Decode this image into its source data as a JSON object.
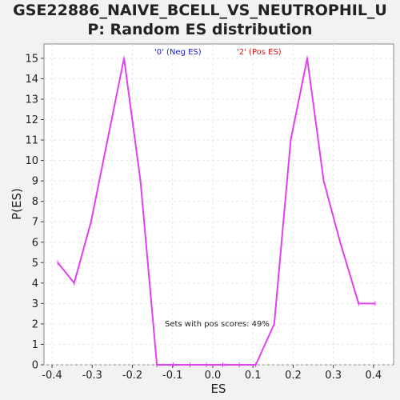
{
  "chart_data": {
    "type": "line",
    "title_line1": "GSE22886_NAIVE_BCELL_VS_NEUTROPHIL_U",
    "title_line2": "P: Random ES distribution",
    "xlabel": "ES",
    "ylabel": "P(ES)",
    "xlim": [
      -0.42,
      0.45
    ],
    "ylim": [
      0,
      15.7
    ],
    "xticks": [
      -0.4,
      -0.3,
      -0.2,
      -0.1,
      0.0,
      0.1,
      0.2,
      0.3,
      0.4
    ],
    "xtick_labels": [
      "-0.4",
      "-0.3",
      "-0.2",
      "-0.1",
      "0.0",
      "0.1",
      "0.2",
      "0.3",
      "0.4"
    ],
    "yticks": [
      0,
      1,
      2,
      3,
      4,
      5,
      6,
      7,
      8,
      9,
      10,
      11,
      12,
      13,
      14,
      15
    ],
    "grid": true,
    "line_color": "#e040f0",
    "legend": [
      {
        "label": "'0' (Neg ES)",
        "color": "#1a1acc"
      },
      {
        "label": "'2' (Pos ES)",
        "color": "#dd1111"
      }
    ],
    "annotation": "Sets with pos scores: 49%",
    "series": [
      {
        "x": [
          -0.386,
          -0.345,
          -0.303,
          -0.262,
          -0.221,
          -0.18,
          -0.139,
          -0.098,
          -0.057,
          -0.016,
          0.025,
          0.066,
          0.107,
          0.153,
          0.194,
          0.235,
          0.276,
          0.317,
          0.363,
          0.404
        ],
        "y": [
          5,
          4,
          7,
          11,
          15,
          9,
          0,
          0,
          0,
          0,
          0,
          0,
          0,
          2,
          11,
          15,
          9,
          6,
          3,
          3
        ]
      }
    ]
  }
}
